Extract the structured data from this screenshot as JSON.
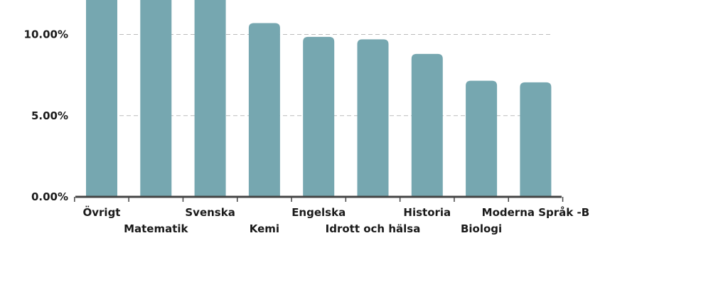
{
  "chart_data": {
    "type": "bar",
    "categories": [
      "Övrigt",
      "Matematik",
      "Svenska",
      "Kemi",
      "Engelska",
      "Idrott och hälsa",
      "Historia",
      "Biologi",
      "Moderna Språk -B"
    ],
    "values": [
      13.5,
      13.5,
      13.5,
      10.7,
      9.85,
      9.7,
      8.8,
      7.15,
      7.05
    ],
    "y_ticks": [
      "0.00%",
      "5.00%",
      "10.00%"
    ],
    "y_tick_values": [
      0,
      5,
      10
    ],
    "ylim": [
      0,
      12.05
    ],
    "grid": true,
    "bar_color": "#76a7b0",
    "grid_color": "#bbbbbb",
    "axis_color": "#444444"
  }
}
